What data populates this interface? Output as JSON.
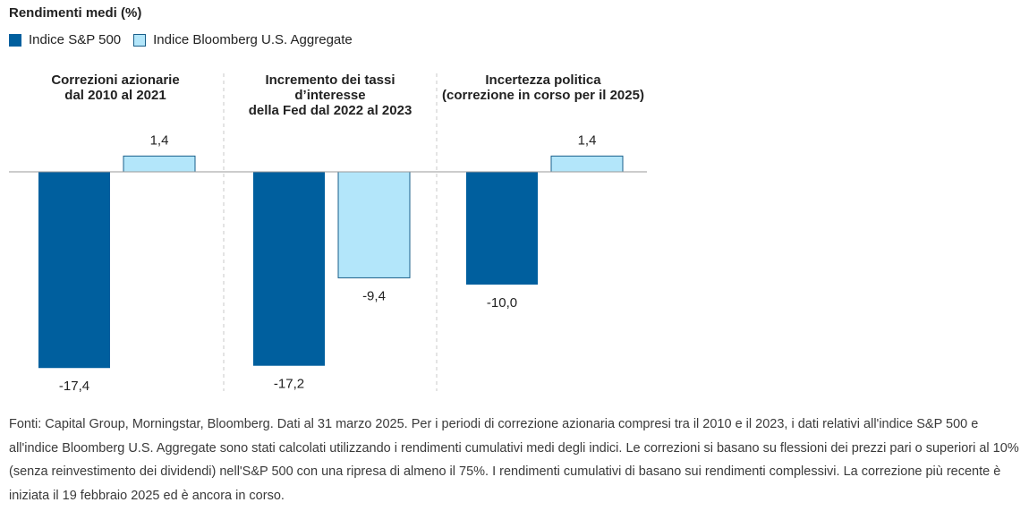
{
  "title": "Rendimenti medi (%)",
  "colors": {
    "sp500": "#005f9e",
    "bloomberg": "#b3e6fa",
    "bloomberg_border": "#1a5f8a"
  },
  "legend": [
    {
      "label": "Indice S&P 500",
      "series": "sp500"
    },
    {
      "label": "Indice Bloomberg U.S. Aggregate",
      "series": "bloomberg"
    }
  ],
  "chart_data": {
    "type": "bar",
    "categories": [
      [
        "Correzioni azionarie",
        "dal 2010 al 2021"
      ],
      [
        "Incremento dei tassi",
        "d’interesse",
        "della Fed dal 2022 al 2023"
      ],
      [
        "Incertezza politica",
        "(correzione in corso per il 2025)"
      ]
    ],
    "series": [
      {
        "name": "Indice S&P 500",
        "values": [
          -17.4,
          -17.2,
          -10.0
        ],
        "labels": [
          "-17,4",
          "-17,2",
          "-10,0"
        ]
      },
      {
        "name": "Indice Bloomberg U.S. Aggregate",
        "values": [
          1.4,
          -9.4,
          1.4
        ],
        "labels": [
          "1,4",
          "-9,4",
          "1,4"
        ]
      }
    ],
    "ylim": [
      -17.4,
      1.4
    ],
    "grid": false,
    "legend_position": "top-left"
  },
  "footnote": "Fonti: Capital Group, Morningstar, Bloomberg. Dati al 31 marzo 2025. Per i periodi di correzione azionaria compresi tra il 2010 e il 2023, i dati relativi all'indice S&P 500 e all'indice Bloomberg U.S. Aggregate sono stati calcolati utilizzando i rendimenti cumulativi medi degli indici. Le correzioni si basano su flessioni dei prezzi pari o superiori al 10% (senza reinvestimento dei dividendi) nell'S&P 500 con una ripresa di almeno il 75%. I rendimenti cumulativi di basano sui rendimenti complessivi. La correzione più recente è iniziata il 19 febbraio 2025 ed è ancora in corso."
}
